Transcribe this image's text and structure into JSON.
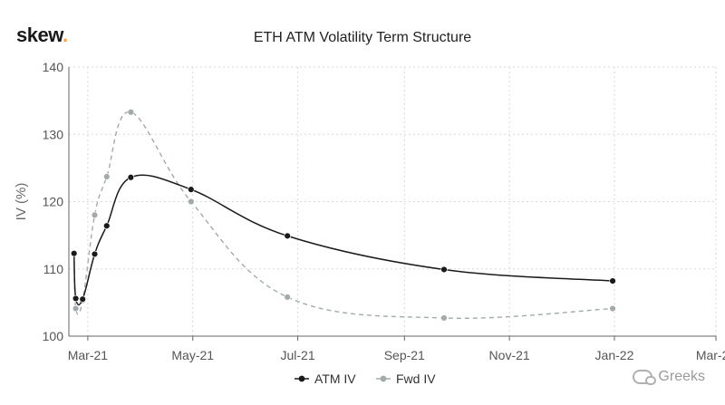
{
  "brand": {
    "name": "skew",
    "dot": "."
  },
  "watermark": "Greeks",
  "chart_data": {
    "type": "line",
    "title": "ETH ATM Volatility Term Structure",
    "xlabel": "",
    "ylabel": "IV (%)",
    "ylim": [
      100,
      140
    ],
    "yticks": [
      100,
      110,
      120,
      130,
      140
    ],
    "xlim": [
      "2021-02-18",
      "2022-03-01"
    ],
    "xticks": [
      {
        "label": "Mar-21",
        "date": "2021-03-01"
      },
      {
        "label": "May-21",
        "date": "2021-05-01"
      },
      {
        "label": "Jul-21",
        "date": "2021-07-01"
      },
      {
        "label": "Sep-21",
        "date": "2021-09-01"
      },
      {
        "label": "Nov-21",
        "date": "2021-11-01"
      },
      {
        "label": "Jan-22",
        "date": "2022-01-01"
      },
      {
        "label": "Mar-22",
        "date": "2022-03-01"
      }
    ],
    "grid": true,
    "legend": "bottom",
    "series": [
      {
        "name": "ATM IV",
        "color": "#1a1a1a",
        "dash": false,
        "points": [
          {
            "date": "2021-02-21",
            "y": 112.3
          },
          {
            "date": "2021-02-22",
            "y": 105.6
          },
          {
            "date": "2021-02-26",
            "y": 105.5
          },
          {
            "date": "2021-03-05",
            "y": 112.2
          },
          {
            "date": "2021-03-12",
            "y": 116.4
          },
          {
            "date": "2021-03-26",
            "y": 123.6
          },
          {
            "date": "2021-04-30",
            "y": 121.8
          },
          {
            "date": "2021-06-25",
            "y": 114.9
          },
          {
            "date": "2021-09-24",
            "y": 109.9
          },
          {
            "date": "2021-12-31",
            "y": 108.2
          }
        ]
      },
      {
        "name": "Fwd IV",
        "color": "#a3aaaa",
        "dash": true,
        "points": [
          {
            "date": "2021-02-21",
            "y": 112.3
          },
          {
            "date": "2021-02-22",
            "y": 104.1
          },
          {
            "date": "2021-02-26",
            "y": 105.3
          },
          {
            "date": "2021-03-05",
            "y": 118.0
          },
          {
            "date": "2021-03-12",
            "y": 123.7
          },
          {
            "date": "2021-03-26",
            "y": 133.3
          },
          {
            "date": "2021-04-30",
            "y": 120.0
          },
          {
            "date": "2021-06-25",
            "y": 105.8
          },
          {
            "date": "2021-09-24",
            "y": 102.7
          },
          {
            "date": "2021-12-31",
            "y": 104.1
          }
        ]
      }
    ]
  }
}
